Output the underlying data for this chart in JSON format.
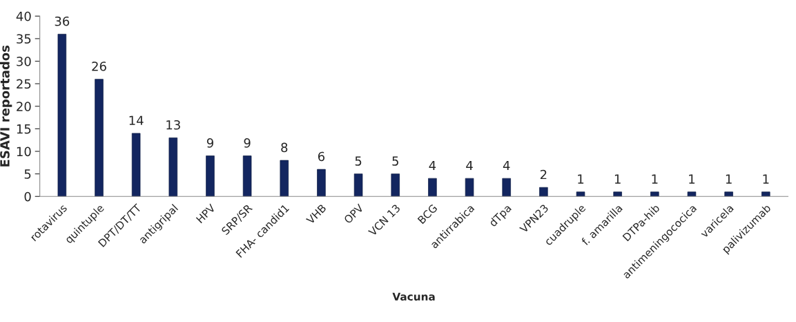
{
  "chart_data": {
    "type": "bar",
    "xlabel": "Vacuna",
    "ylabel": "ESAVI reportados",
    "categories": [
      "rotavirus",
      "quintuple",
      "DPT/DT/TT",
      "antigripal",
      "HPV",
      "SRP/SR",
      "FHA- candid1",
      "VHB",
      "OPV",
      "VCN 13",
      "BCG",
      "antirrabica",
      "dTpa",
      "VPN23",
      "cuadruple",
      "f. amarilla",
      "DTPa-hib",
      "antimeningococica",
      "varicela",
      "palivizumab"
    ],
    "values": [
      36,
      26,
      14,
      13,
      9,
      9,
      8,
      6,
      5,
      5,
      4,
      4,
      4,
      2,
      1,
      1,
      1,
      1,
      1,
      1
    ],
    "color": "#132660",
    "ylim": [
      0,
      40
    ],
    "yticks": [
      0,
      5,
      10,
      15,
      20,
      25,
      30,
      35,
      40
    ],
    "grid": false,
    "data_labels": true
  }
}
